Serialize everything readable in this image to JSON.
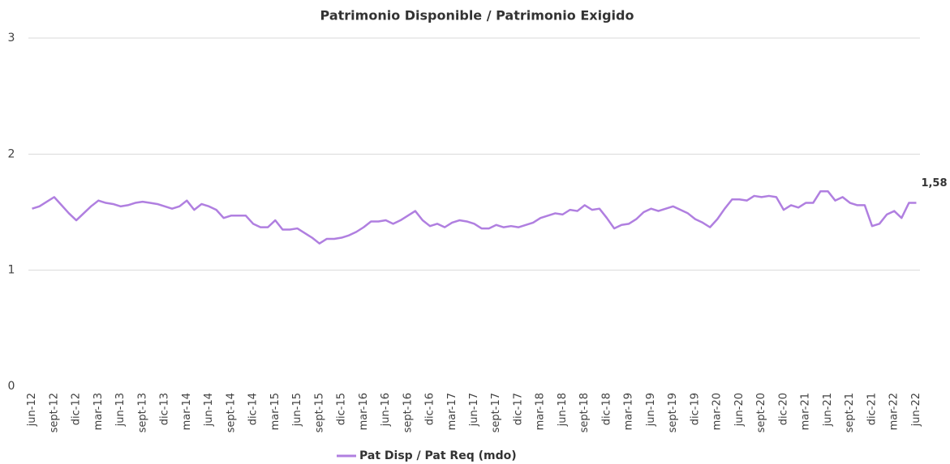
{
  "chart_data": {
    "type": "line",
    "title": "Patrimonio Disponible / Patrimonio Exigido",
    "categories": [
      "jun-12",
      null,
      null,
      "sept-12",
      null,
      null,
      "dic-12",
      null,
      null,
      "mar-13",
      null,
      null,
      "jun-13",
      null,
      null,
      "sept-13",
      null,
      null,
      "dic-13",
      null,
      null,
      "mar-14",
      null,
      null,
      "jun-14",
      null,
      null,
      "sept-14",
      null,
      null,
      "dic-14",
      null,
      null,
      "mar-15",
      null,
      null,
      "jun-15",
      null,
      null,
      "sept-15",
      null,
      null,
      "dic-15",
      null,
      null,
      "mar-16",
      null,
      null,
      "jun-16",
      null,
      null,
      "sept-16",
      null,
      null,
      "dic-16",
      null,
      null,
      "mar-17",
      null,
      null,
      "jun-17",
      null,
      null,
      "sept-17",
      null,
      null,
      "dic-17",
      null,
      null,
      "mar-18",
      null,
      null,
      "jun-18",
      null,
      null,
      "sept-18",
      null,
      null,
      "dic-18",
      null,
      null,
      "mar-19",
      null,
      null,
      "jun-19",
      null,
      null,
      "sept-19",
      null,
      null,
      "dic-19",
      null,
      null,
      "mar-20",
      null,
      null,
      "jun-20",
      null,
      null,
      "sept-20",
      null,
      null,
      "dic-20",
      null,
      null,
      "mar-21",
      null,
      null,
      "jun-21",
      null,
      null,
      "sept-21",
      null,
      null,
      "dic-21",
      null,
      null,
      "mar-22",
      null,
      null,
      "jun-22"
    ],
    "series": [
      {
        "name": "Pat Disp / Pat Req (mdo)",
        "color": "#b07fe0",
        "values": [
          1.53,
          1.55,
          1.59,
          1.63,
          1.56,
          1.49,
          1.43,
          1.49,
          1.55,
          1.6,
          1.58,
          1.57,
          1.55,
          1.56,
          1.58,
          1.59,
          1.58,
          1.57,
          1.55,
          1.53,
          1.55,
          1.6,
          1.52,
          1.57,
          1.55,
          1.52,
          1.45,
          1.47,
          1.47,
          1.47,
          1.4,
          1.37,
          1.37,
          1.43,
          1.35,
          1.35,
          1.36,
          1.32,
          1.28,
          1.23,
          1.27,
          1.27,
          1.28,
          1.3,
          1.33,
          1.37,
          1.42,
          1.42,
          1.43,
          1.4,
          1.43,
          1.47,
          1.51,
          1.43,
          1.38,
          1.4,
          1.37,
          1.41,
          1.43,
          1.42,
          1.4,
          1.36,
          1.36,
          1.39,
          1.37,
          1.38,
          1.37,
          1.39,
          1.41,
          1.45,
          1.47,
          1.49,
          1.48,
          1.52,
          1.51,
          1.56,
          1.52,
          1.53,
          1.45,
          1.36,
          1.39,
          1.4,
          1.44,
          1.5,
          1.53,
          1.51,
          1.53,
          1.55,
          1.52,
          1.49,
          1.44,
          1.41,
          1.37,
          1.44,
          1.53,
          1.61,
          1.61,
          1.6,
          1.64,
          1.63,
          1.64,
          1.63,
          1.52,
          1.56,
          1.54,
          1.58,
          1.58,
          1.68,
          1.68,
          1.6,
          1.63,
          1.58,
          1.56,
          1.56,
          1.38,
          1.4,
          1.48,
          1.51,
          1.45,
          1.58,
          1.58
        ],
        "value_labels": [
          null,
          null,
          null,
          null,
          null,
          null,
          null,
          null,
          null,
          null,
          null,
          null,
          null,
          null,
          null,
          null,
          null,
          null,
          null,
          null,
          null,
          null,
          null,
          null,
          null,
          null,
          null,
          null,
          null,
          null,
          null,
          null,
          null,
          null,
          null,
          null,
          null,
          null,
          null,
          null,
          null,
          null,
          null,
          null,
          null,
          null,
          null,
          null,
          null,
          null,
          null,
          null,
          null,
          null,
          null,
          null,
          null,
          null,
          null,
          null,
          null,
          null,
          null,
          null,
          null,
          null,
          null,
          null,
          null,
          null,
          null,
          null,
          null,
          null,
          null,
          null,
          null,
          null,
          null,
          null,
          null,
          null,
          null,
          null,
          null,
          null,
          null,
          null,
          null,
          null,
          null,
          null,
          null,
          null,
          null,
          null,
          null,
          null,
          null,
          null,
          null,
          null,
          null,
          null,
          null,
          null,
          null,
          null,
          null,
          null,
          null,
          null,
          null,
          null,
          null,
          null,
          null,
          null,
          null,
          null,
          "1,58"
        ]
      }
    ],
    "ylim": [
      0,
      3
    ],
    "yticks": [
      0,
      1,
      2,
      3
    ],
    "grid": true,
    "legend": "bottom"
  }
}
